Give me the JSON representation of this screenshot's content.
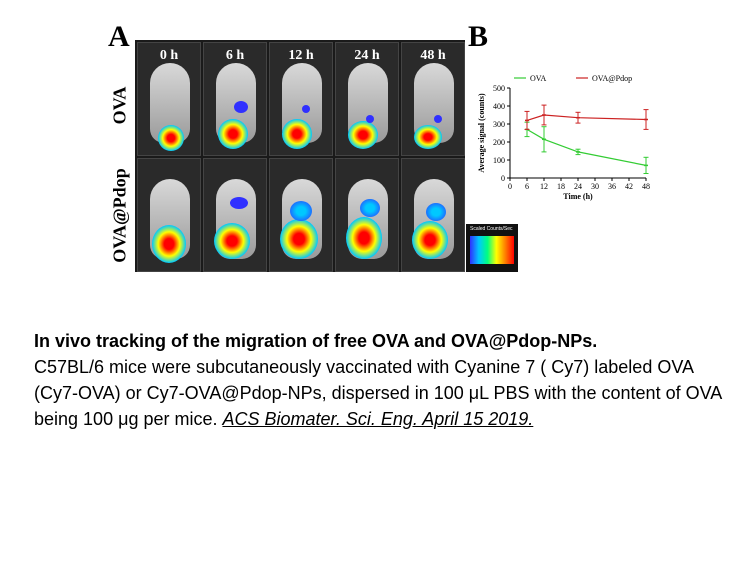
{
  "figure": {
    "panel_a_label": "A",
    "panel_b_label": "B",
    "time_points": [
      "0 h",
      "6 h",
      "12 h",
      "24 h",
      "48 h"
    ],
    "rows": [
      "OVA",
      "OVA@Pdop"
    ],
    "scalebar_title": "Scaled Counts/Sec"
  },
  "chart_data": {
    "type": "line",
    "xlabel": "Time (h)",
    "ylabel": "Average signal (counts)",
    "xlim": [
      0,
      48
    ],
    "ylim": [
      0,
      500
    ],
    "xticks": [
      0,
      6,
      12,
      18,
      24,
      30,
      36,
      42,
      48
    ],
    "yticks": [
      0,
      100,
      200,
      300,
      400,
      500
    ],
    "legend_position": "top",
    "series": [
      {
        "name": "OVA",
        "color": "#33cc33",
        "x": [
          6,
          12,
          24,
          48
        ],
        "y": [
          270,
          215,
          145,
          70
        ],
        "err": [
          40,
          70,
          15,
          45
        ]
      },
      {
        "name": "OVA@Pdop",
        "color": "#cc2222",
        "x": [
          6,
          12,
          24,
          48
        ],
        "y": [
          320,
          350,
          335,
          325
        ],
        "err": [
          50,
          55,
          30,
          55
        ]
      }
    ]
  },
  "caption": {
    "title": "In vivo tracking of the migration of free OVA and OVA@Pdop-NPs.",
    "body": "C57BL/6 mice were subcutaneously vaccinated with Cyanine 7 ( Cy7) labeled OVA (Cy7-OVA) or Cy7-OVA@Pdop-NPs, dispersed in 100 μL PBS with the content of OVA being 100 μg per mice. ",
    "citation": "ACS Biomater. Sci. Eng. April 15 2019."
  }
}
